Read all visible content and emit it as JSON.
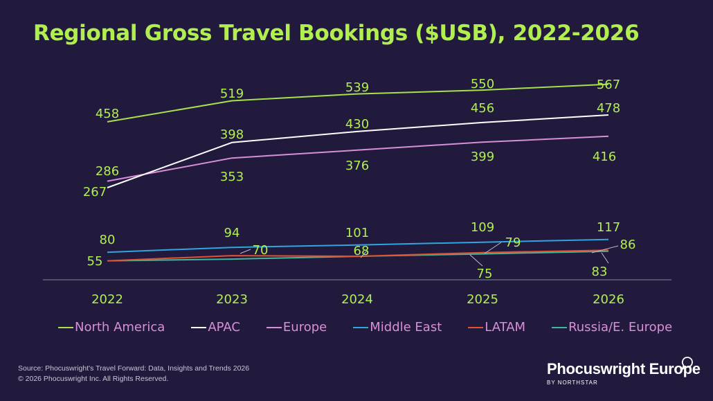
{
  "title": "Regional Gross Travel Bookings ($USB), 2022-2026",
  "colors": {
    "background": "#221a3d",
    "accent": "#b1ef51",
    "axis": "#8a86a0",
    "north_america": "#a8e24a",
    "apac": "#ffffff",
    "europe": "#d98fd8",
    "middle_east": "#2da7de",
    "latam": "#e5502d",
    "russia": "#3fb6a0"
  },
  "chart_data": {
    "type": "line",
    "title": "Regional Gross Travel Bookings ($USB), 2022-2026",
    "categories": [
      "2022",
      "2023",
      "2024",
      "2025",
      "2026"
    ],
    "series": [
      {
        "name": "North America",
        "values": [
          458,
          519,
          539,
          550,
          567
        ]
      },
      {
        "name": "APAC",
        "values": [
          267,
          398,
          430,
          456,
          478
        ]
      },
      {
        "name": "Europe",
        "values": [
          286,
          353,
          376,
          399,
          416
        ]
      },
      {
        "name": "Middle East",
        "values": [
          80,
          94,
          101,
          109,
          117
        ]
      },
      {
        "name": "LATAM",
        "values": [
          55,
          70,
          68,
          79,
          86
        ]
      },
      {
        "name": "Russia/E. Europe",
        "values": [
          55,
          60,
          68,
          75,
          83
        ]
      }
    ],
    "data_labels": {
      "North America": [
        "458",
        "519",
        "539",
        "550",
        "567"
      ],
      "APAC": [
        "267",
        "398",
        "430",
        "456",
        "478"
      ],
      "Europe": [
        "286",
        "353",
        "376",
        "399",
        "416"
      ],
      "Middle East": [
        "80",
        "94",
        "101",
        "109",
        "117"
      ],
      "LATAM": [
        "55",
        "70",
        "68",
        "79",
        "86"
      ],
      "Russia/E. Europe": [
        "",
        "",
        "",
        "75",
        "83"
      ]
    },
    "xlabel": "",
    "ylabel": "",
    "ylim": [
      0,
      620
    ],
    "grid": false,
    "legend_position": "bottom"
  },
  "legend": [
    {
      "label": "North America",
      "color": "#a8e24a"
    },
    {
      "label": "APAC",
      "color": "#ffffff"
    },
    {
      "label": "Europe",
      "color": "#d98fd8"
    },
    {
      "label": "Middle East",
      "color": "#2da7de"
    },
    {
      "label": "LATAM",
      "color": "#e5502d"
    },
    {
      "label": "Russia/E. Europe",
      "color": "#3fb6a0"
    }
  ],
  "source": {
    "line1": "Source: Phocuswright's Travel Forward: Data, Insights and Trends 2026",
    "line2": "© 2026 Phocuswright Inc. All Rights Reserved."
  },
  "brand": {
    "name": "Phocuswright Europe",
    "sub": "BY NORTHSTAR"
  }
}
